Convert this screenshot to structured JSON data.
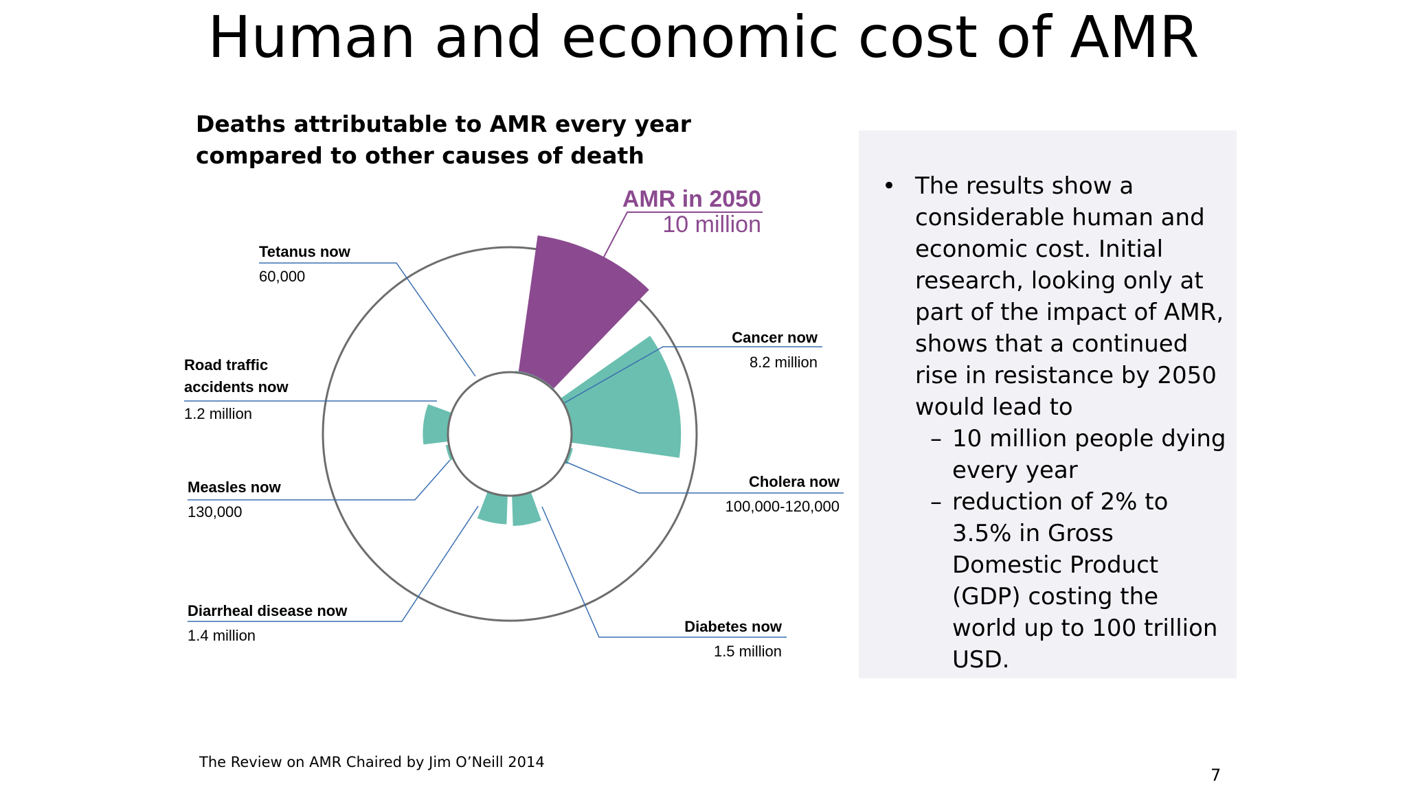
{
  "slide": {
    "title": "Human and economic cost of AMR",
    "source": "The Review on AMR Chaired by Jim O’Neill 2014",
    "page_number": "7"
  },
  "chart_data": {
    "type": "polar-area",
    "title": "Deaths attributable to AMR every year compared to other causes of death",
    "highlight": {
      "label": "AMR in 2050",
      "value_label": "10 million",
      "value": 10000000,
      "color": "#8b4a8f"
    },
    "series_color": "#6bbfb0",
    "outer_circle_value": 10000000,
    "categories": [
      {
        "label": "Tetanus now",
        "value_label": "60,000",
        "value": 60000
      },
      {
        "label": "Cancer now",
        "value_label": "8.2 million",
        "value": 8200000
      },
      {
        "label": "Cholera now",
        "value_label": "100,000-120,000",
        "value": 120000
      },
      {
        "label": "Diabetes now",
        "value_label": "1.5 million",
        "value": 1500000
      },
      {
        "label": "Diarrheal disease now",
        "value_label": "1.4 million",
        "value": 1400000
      },
      {
        "label": "Measles now",
        "value_label": "130,000",
        "value": 130000
      },
      {
        "label": "Road traffic accidents now",
        "value_label": "1.2 million",
        "value": 1200000
      }
    ]
  },
  "panel": {
    "bullet": "The results show a considerable human and economic cost. Initial research, looking only at part of the impact of AMR, shows that a continued rise in resistance by 2050 would lead to",
    "sub_items": [
      "10 million people dying every year",
      "reduction of 2% to 3.5% in Gross Domestic Product (GDP) costing the world up to 100 trillion USD."
    ]
  }
}
